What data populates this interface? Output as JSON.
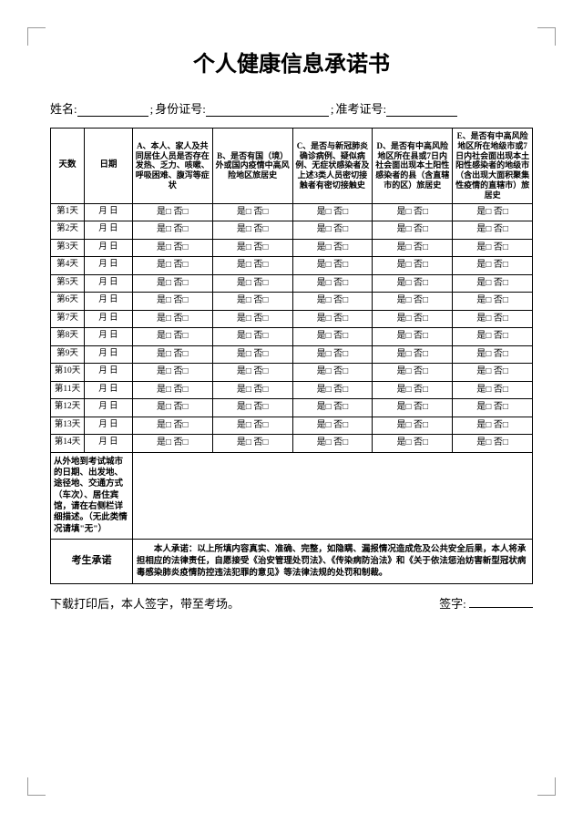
{
  "title": "个人健康信息承诺书",
  "info": {
    "name_label": "姓名:",
    "name_value": "",
    "sep1": ";",
    "id_label": "身份证号:",
    "id_value": "",
    "sep2": ";",
    "exam_label": "准考证号:",
    "exam_value": ""
  },
  "headers": {
    "day": "天数",
    "date": "日期",
    "qA": "A、本人、家人及共同居住人员是否存在发热、乏力、咳嗽、呼吸困难、腹泻等症状",
    "qB": "B、是否有国（境）外或国内疫情中高风险地区旅居史",
    "qC": "C、是否与新冠肺炎确诊病例、疑似病例、无症状感染者及上述3类人员密切接触者有密切接触史",
    "qD": "D、是否有中高风险地区所在县或7日内社会面出现本土阳性感染者的县（含直辖市的区）旅居史",
    "qE": "E、是否有中高风险地区所在地级市或7日内社会面出现本土阳性感染者的地级市（含出现大面积聚集性疫情的直辖市）旅居史"
  },
  "rows": [
    {
      "day": "第1天",
      "date": "月  日"
    },
    {
      "day": "第2天",
      "date": "月  日"
    },
    {
      "day": "第3天",
      "date": "月  日"
    },
    {
      "day": "第4天",
      "date": "月  日"
    },
    {
      "day": "第5天",
      "date": "月  日"
    },
    {
      "day": "第6天",
      "date": "月  日"
    },
    {
      "day": "第7天",
      "date": "月  日"
    },
    {
      "day": "第8天",
      "date": "月  日"
    },
    {
      "day": "第9天",
      "date": "月  日"
    },
    {
      "day": "第10天",
      "date": "月  日"
    },
    {
      "day": "第11天",
      "date": "月  日"
    },
    {
      "day": "第12天",
      "date": "月  日"
    },
    {
      "day": "第13天",
      "date": "月  日"
    },
    {
      "day": "第14天",
      "date": "月  日"
    }
  ],
  "yesno": "是□ 否□",
  "travel_label": "从外地到考试城市的日期、出发地、途径地、交通方式（车次）、居住宾馆，请在右侧栏详细描述。（无此类情况请填\"无\"）",
  "commit_label": "考生承诺",
  "commit_text": "　　本人承诺：以上所填内容真实、准确、完整，如隐瞒、漏报情况造成危及公共安全后果，本人将承担相应的法律责任，自愿接受《治安管理处罚法》、《传染病防治法》和《关于依法惩治妨害新型冠状病毒感染肺炎疫情防控违法犯罪的意见》等法律法规的处罚和制裁。",
  "footer": {
    "print_note": "下载打印后，本人签字，带至考场。",
    "sign_label": "签字:",
    "sign_value": ""
  }
}
